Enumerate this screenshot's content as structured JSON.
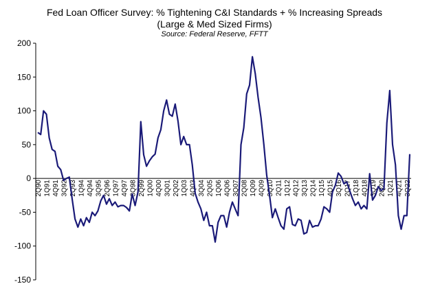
{
  "chart_data": {
    "type": "line",
    "title": "Fed Loan Officer Survey: % Tightening C&I Standards + % Increasing Spreads",
    "subtitle": "(Large & Med Sized Firms)",
    "source": "Source: Federal Reserve, FFTT",
    "xlabel": "",
    "ylabel": "",
    "ylim": [
      -150,
      200
    ],
    "yticks": [
      "200",
      "150",
      "100",
      "50",
      "0",
      "-50",
      "-100",
      "-150"
    ],
    "grid": false,
    "legend": "none",
    "series": [
      {
        "name": "% Tightening C&I Standards + % Increasing Spreads",
        "color": "#1a1a78",
        "start_quarter": "2Q90",
        "values": [
          68,
          65,
          100,
          95,
          60,
          43,
          40,
          18,
          13,
          -3,
          0,
          2,
          -30,
          -60,
          -72,
          -60,
          -70,
          -58,
          -65,
          -50,
          -55,
          -48,
          -33,
          -25,
          -38,
          -30,
          -40,
          -35,
          -42,
          -40,
          -40,
          -43,
          -48,
          -23,
          -40,
          -20,
          84,
          35,
          18,
          26,
          32,
          36,
          60,
          72,
          100,
          116,
          95,
          92,
          110,
          85,
          50,
          62,
          50,
          50,
          20,
          -22,
          -35,
          -45,
          -62,
          -50,
          -70,
          -70,
          -94,
          -65,
          -55,
          -55,
          -72,
          -50,
          -35,
          -45,
          -55,
          50,
          75,
          125,
          138,
          180,
          155,
          120,
          90,
          50,
          5,
          -25,
          -58,
          -45,
          -58,
          -70,
          -75,
          -45,
          -42,
          -68,
          -70,
          -60,
          -62,
          -82,
          -80,
          -62,
          -72,
          -70,
          -70,
          -60,
          -42,
          -45,
          -50,
          -20,
          -10,
          8,
          3,
          -8,
          -5,
          -18,
          -30,
          -40,
          -35,
          -45,
          -40,
          -45,
          7,
          -32,
          -25,
          -12,
          -18,
          -15,
          82,
          130,
          50,
          20,
          -55,
          -75,
          -55,
          -55,
          36
        ]
      }
    ],
    "x_tick_labels": [
      "2Q90",
      "1Q91",
      "4Q91",
      "3Q92",
      "2Q93",
      "1Q94",
      "4Q94",
      "3Q95",
      "2Q96",
      "1Q97",
      "4Q97",
      "3Q98",
      "2Q99",
      "1Q00",
      "4Q00",
      "3Q01",
      "2Q02",
      "1Q03",
      "4Q03",
      "3Q04",
      "2Q05",
      "1Q06",
      "4Q06",
      "3Q07",
      "2Q08",
      "1Q09",
      "4Q09",
      "3Q10",
      "2Q11",
      "1Q12",
      "4Q12",
      "3Q13",
      "2Q14",
      "1Q15",
      "4Q15",
      "3Q16",
      "2Q17",
      "1Q18",
      "4Q18",
      "3Q19",
      "2Q20",
      "1Q21",
      "4Q21",
      "3Q22"
    ]
  }
}
